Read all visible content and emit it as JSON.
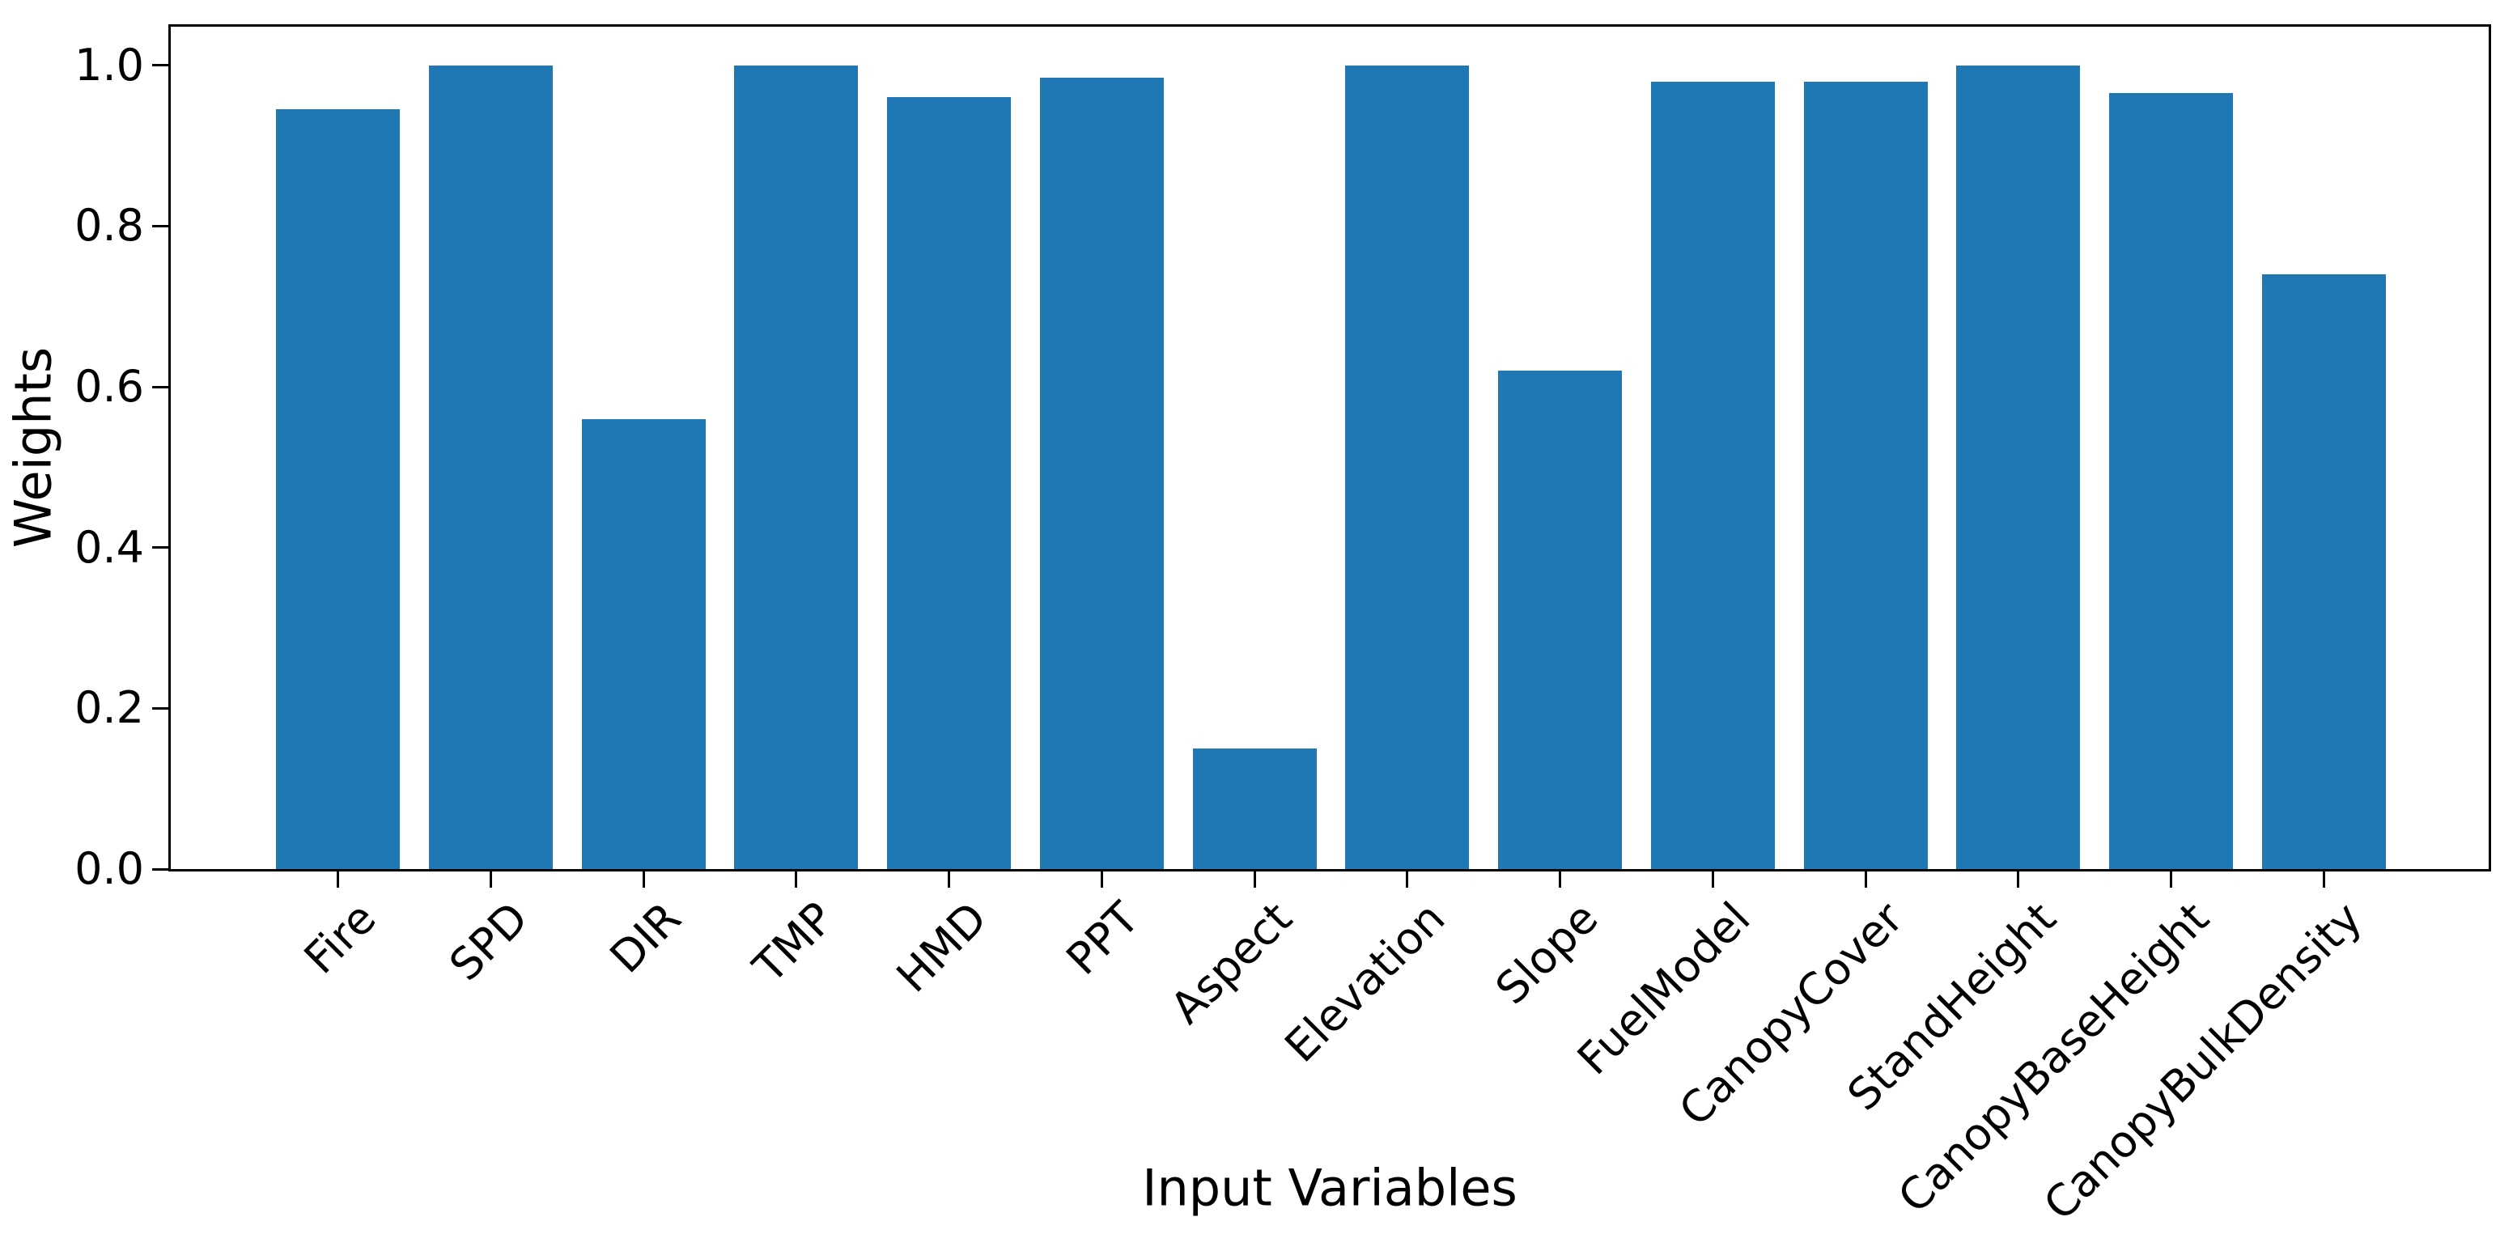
{
  "chart_data": {
    "type": "bar",
    "title": "",
    "xlabel": "Input Variables",
    "ylabel": "Weights",
    "categories": [
      "Fire",
      "SPD",
      "DIR",
      "TMP",
      "HMD",
      "PPT",
      "Aspect",
      "Elevation",
      "Slope",
      "FuelModel",
      "CanopyCover",
      "StandHeight",
      "CanopyBaseHeight",
      "CanopyBulkDensity"
    ],
    "values": [
      0.945,
      1.0,
      0.56,
      1.0,
      0.96,
      0.985,
      0.15,
      1.0,
      0.62,
      0.98,
      0.98,
      1.0,
      0.965,
      0.74
    ],
    "ytick_labels": [
      "0.0",
      "0.2",
      "0.4",
      "0.6",
      "0.8",
      "1.0"
    ],
    "ytick_values": [
      0.0,
      0.2,
      0.4,
      0.6,
      0.8,
      1.0
    ],
    "ylim": [
      0,
      1.048
    ],
    "bar_color": "#1f77b4",
    "axis_color": "#000000",
    "background_color": "#ffffff",
    "grid": false,
    "legend": null,
    "x_tick_rotation_deg": 45
  }
}
